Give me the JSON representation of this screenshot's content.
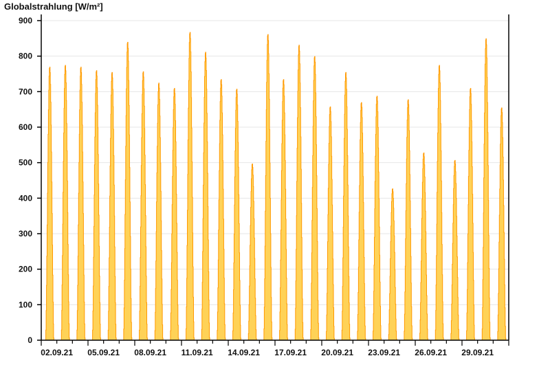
{
  "chart_data": {
    "type": "area",
    "title": "Globalstrahlung [W/m²]",
    "xlabel": "",
    "ylabel": "",
    "ylim": [
      0,
      900
    ],
    "yticks": [
      0,
      100,
      200,
      300,
      400,
      500,
      600,
      700,
      800,
      900
    ],
    "xlim": [
      "01.09.21",
      "01.10.21"
    ],
    "xtick_labels": [
      "02.09.21",
      "05.09.21",
      "08.09.21",
      "11.09.21",
      "14.09.21",
      "17.09.21",
      "20.09.21",
      "23.09.21",
      "26.09.21",
      "29.09.21"
    ],
    "grid": "horizontal",
    "fill_color": "#FFD257",
    "line_color": "#FF9900",
    "series": [
      {
        "dates": [
          "01.09.21",
          "02.09.21",
          "03.09.21",
          "04.09.21",
          "05.09.21",
          "06.09.21",
          "07.09.21",
          "08.09.21",
          "09.09.21",
          "10.09.21",
          "11.09.21",
          "12.09.21",
          "13.09.21",
          "14.09.21",
          "15.09.21",
          "16.09.21",
          "17.09.21",
          "18.09.21",
          "19.09.21",
          "20.09.21",
          "21.09.21",
          "22.09.21",
          "23.09.21",
          "24.09.21",
          "25.09.21",
          "26.09.21",
          "27.09.21",
          "28.09.21",
          "29.09.21",
          "30.09.21"
        ],
        "daily_peak": [
          770,
          775,
          770,
          760,
          755,
          840,
          757,
          725,
          710,
          868,
          812,
          735,
          708,
          497,
          862,
          735,
          832,
          800,
          658,
          755,
          670,
          688,
          427,
          678,
          528,
          775,
          507,
          710,
          850,
          655
        ]
      }
    ]
  }
}
